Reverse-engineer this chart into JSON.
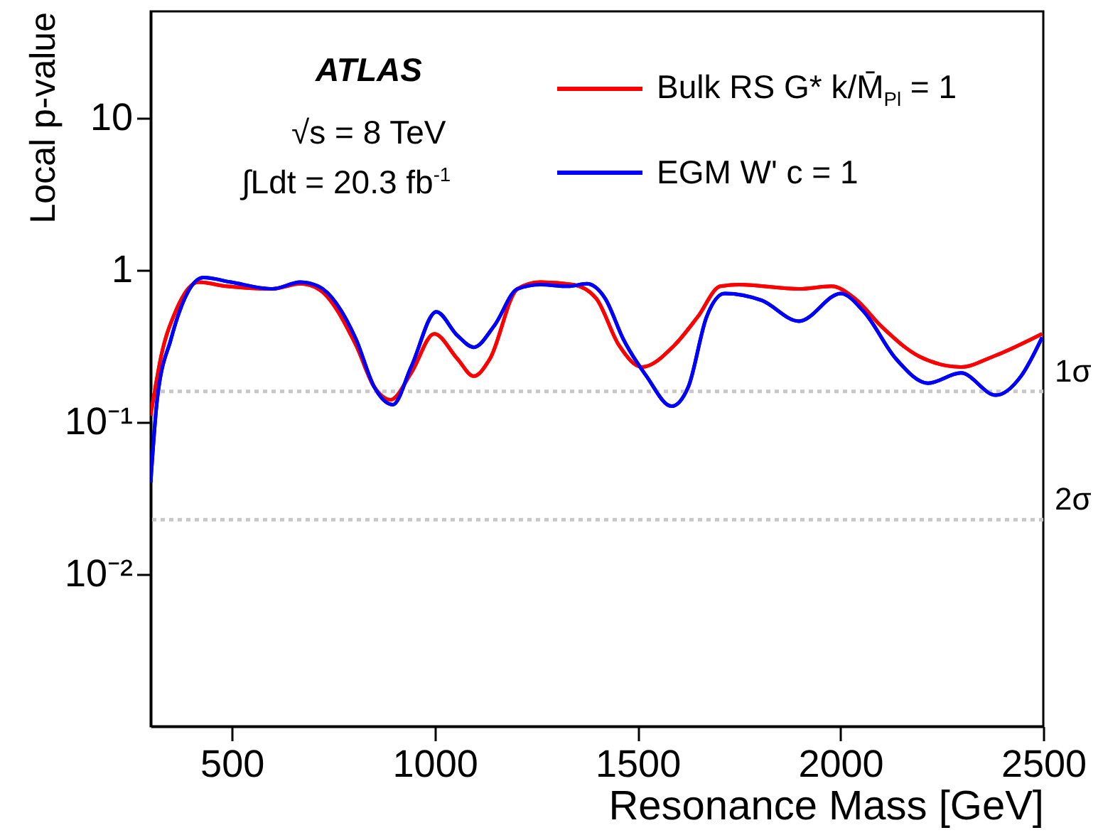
{
  "chart_data": {
    "type": "line",
    "xlabel": "Resonance Mass [GeV]",
    "ylabel": "Local p-value",
    "log": true,
    "legend": "top right",
    "xlim": [
      300,
      2500
    ],
    "xticks": [
      500,
      1000,
      1500,
      2000,
      2500
    ],
    "ylim": [
      0.001,
      50
    ],
    "yticks": [
      {
        "value": 0.01,
        "label": "10⁻²"
      },
      {
        "value": 0.1,
        "label": "10⁻¹"
      },
      1,
      10
    ],
    "annotations": [
      "ATLAS",
      "√s = 8 TeV",
      "∫Ldt = 20.3 fb$^{-1}$"
    ],
    "ref_lines": [
      {
        "axis": "y",
        "value": 0.159,
        "label": "1σ",
        "color": "#c8c8c8",
        "line_style": "dotted"
      },
      {
        "axis": "y",
        "value": 0.0228,
        "label": "2σ",
        "color": "#c8c8c8",
        "line_style": "dotted"
      }
    ],
    "series": [
      {
        "name": "Bulk RS G* k/M̄$_{Pl}$ = 1",
        "color": "#ff0000",
        "x": [
          300,
          327,
          361,
          418,
          487,
          600,
          669,
          713,
          806,
          851,
          891,
          942,
          999,
          1056,
          1096,
          1136,
          1204,
          1260,
          1341,
          1398,
          1454,
          1511,
          1591,
          1648,
          1704,
          1750,
          1898,
          1978,
          2035,
          2103,
          2194,
          2297,
          2377,
          2497
        ],
        "values": [
          0.11,
          0.28,
          0.53,
          0.83,
          0.78,
          0.75,
          0.81,
          0.75,
          0.32,
          0.17,
          0.14,
          0.21,
          0.38,
          0.26,
          0.2,
          0.26,
          0.75,
          0.83,
          0.8,
          0.65,
          0.32,
          0.23,
          0.32,
          0.49,
          0.78,
          0.8,
          0.75,
          0.78,
          0.65,
          0.42,
          0.27,
          0.23,
          0.27,
          0.38
        ]
      },
      {
        "name": "EGM W' c = 1",
        "color": "#0000ff",
        "x": [
          300,
          316,
          350,
          384,
          430,
          498,
          600,
          669,
          713,
          806,
          851,
          897,
          942,
          1004,
          1056,
          1096,
          1147,
          1204,
          1260,
          1329,
          1375,
          1420,
          1465,
          1522,
          1584,
          1625,
          1670,
          1715,
          1806,
          1898,
          2001,
          2058,
          2137,
          2216,
          2297,
          2383,
          2445,
          2497
        ],
        "values": [
          0.04,
          0.14,
          0.35,
          0.65,
          0.89,
          0.83,
          0.75,
          0.83,
          0.78,
          0.35,
          0.17,
          0.13,
          0.23,
          0.53,
          0.37,
          0.31,
          0.43,
          0.75,
          0.8,
          0.78,
          0.81,
          0.65,
          0.35,
          0.2,
          0.127,
          0.17,
          0.49,
          0.7,
          0.63,
          0.46,
          0.7,
          0.53,
          0.26,
          0.18,
          0.21,
          0.15,
          0.2,
          0.36
        ]
      }
    ]
  }
}
